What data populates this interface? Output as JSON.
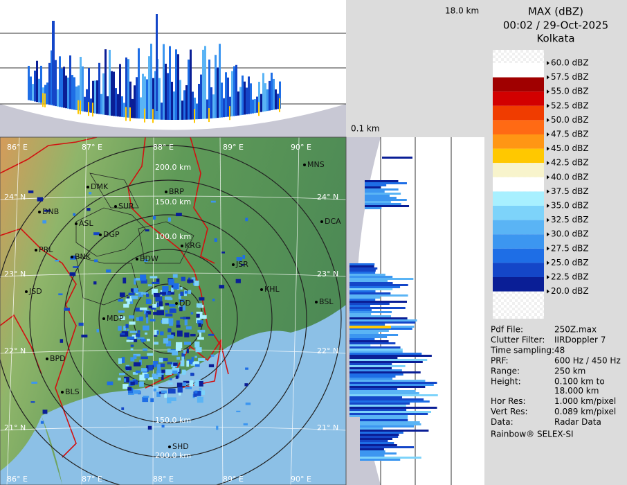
{
  "cross_section": {
    "top_label": "18.0 km",
    "bottom_label": "0.1 km"
  },
  "header": {
    "product": "MAX (dBZ)",
    "datetime": "00:02 / 29-Oct-2025",
    "site": "Kolkata"
  },
  "legend": [
    {
      "label": "60.0 dBZ"
    },
    {
      "label": "57.5 dBZ",
      "color": "#ffffff"
    },
    {
      "label": "55.0 dBZ",
      "color": "#a00000"
    },
    {
      "label": "52.5 dBZ",
      "color": "#d20000"
    },
    {
      "label": "50.0 dBZ",
      "color": "#f03c00"
    },
    {
      "label": "47.5 dBZ",
      "color": "#ff6a14"
    },
    {
      "label": "45.0 dBZ",
      "color": "#ff9614"
    },
    {
      "label": "42.5 dBZ",
      "color": "#ffc800"
    },
    {
      "label": "40.0 dBZ",
      "color": "#f8f4cc"
    },
    {
      "label": "37.5 dBZ",
      "color": "#ffffff"
    },
    {
      "label": "35.0 dBZ",
      "color": "#a8f0ff"
    },
    {
      "label": "32.5 dBZ",
      "color": "#7dd3fa"
    },
    {
      "label": "30.0 dBZ",
      "color": "#5ab4f5"
    },
    {
      "label": "27.5 dBZ",
      "color": "#3c96f0"
    },
    {
      "label": "25.0 dBZ",
      "color": "#1e6ee6"
    },
    {
      "label": "22.5 dBZ",
      "color": "#1446c8"
    },
    {
      "label": "20.0 dBZ",
      "color": "#0a1e96"
    }
  ],
  "info": [
    {
      "key": "Pdf File:",
      "value": [
        "250Z.max"
      ]
    },
    {
      "key": "Clutter Filter:",
      "value": [
        "IIRDoppler 7"
      ]
    },
    {
      "key": "Time sampling:48",
      "value": []
    },
    {
      "key": "PRF:",
      "value": [
        "600 Hz / 450 Hz"
      ]
    },
    {
      "key": "Range:",
      "value": [
        "250 km"
      ]
    },
    {
      "key": "Height:",
      "value": [
        "0.100 km to",
        "18.000 km"
      ]
    },
    {
      "key": "Hor Res:",
      "value": [
        "1.000 km/pixel"
      ]
    },
    {
      "key": "Vert Res:",
      "value": [
        "0.089 km/pixel"
      ]
    },
    {
      "key": "Data:",
      "value": [
        "Radar Data"
      ]
    }
  ],
  "credit": "Rainbow® SELEX-SI",
  "map": {
    "longitudes": [
      "86° E",
      "87° E",
      "88° E",
      "89° E",
      "90° E"
    ],
    "latitudes": [
      "24° N",
      "23° N",
      "22° N",
      "21° N"
    ],
    "ranges_north": [
      "200.0 km",
      "150.0 km",
      "100.0 km"
    ],
    "ranges_south": [
      "150.0 km",
      "200.0 km"
    ],
    "cities": [
      "MNS",
      "DMK",
      "BRP",
      "DNB",
      "SUR",
      "ASL",
      "DGP",
      "DCA",
      "PRL",
      "KRG",
      "BNK",
      "BDW",
      "JSR",
      "JSD",
      "KHL",
      "DD",
      "BSL",
      "MDP",
      "BPD",
      "BLS",
      "SHD"
    ]
  }
}
